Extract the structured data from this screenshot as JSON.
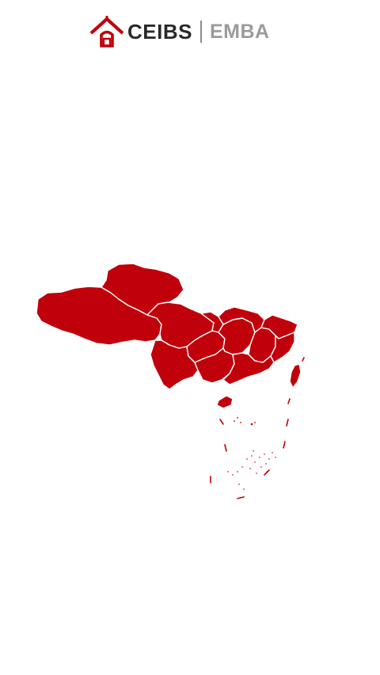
{
  "brand": {
    "name": "CEIBS",
    "program": "EMBA"
  },
  "colors": {
    "brand_red": "#C0000B",
    "logo_text": "#2a2a2a",
    "logo_sub": "#9b9b9b",
    "region_border": "#ffffff",
    "background": "#ffffff"
  },
  "map": {
    "region_fill": "#C0000B",
    "border_color": "#ffffff"
  }
}
